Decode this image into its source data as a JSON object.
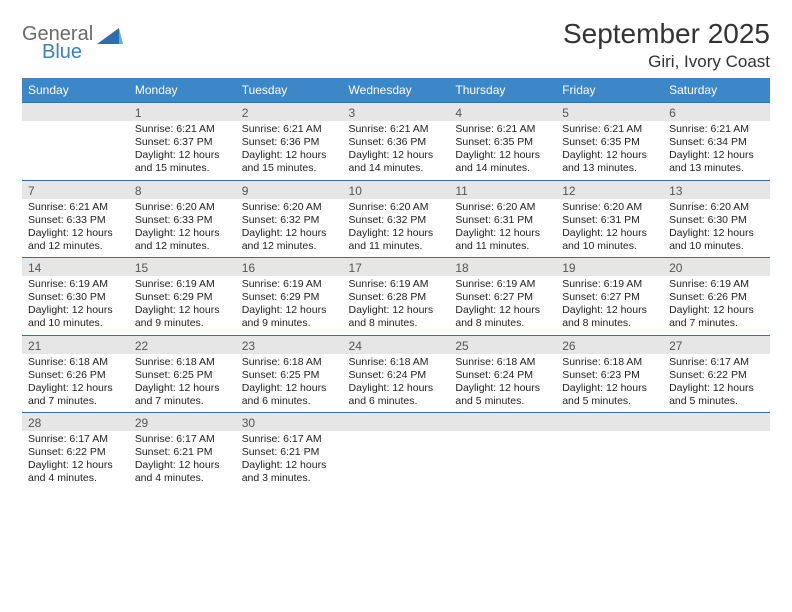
{
  "logo": {
    "word1": "General",
    "word2": "Blue",
    "shape_color": "#2f6db3",
    "word1_color": "#6b6b6b"
  },
  "title": "September 2025",
  "location": "Giri, Ivory Coast",
  "colors": {
    "header_bg": "#3b87c8",
    "header_text": "#ffffff",
    "daynum_bg": "#e6e6e6",
    "row_border": "#3b6fa0",
    "text": "#222222"
  },
  "dow": [
    "Sunday",
    "Monday",
    "Tuesday",
    "Wednesday",
    "Thursday",
    "Friday",
    "Saturday"
  ],
  "weeks": [
    [
      {
        "n": "",
        "sr": "",
        "ss": "",
        "dl": ""
      },
      {
        "n": "1",
        "sr": "Sunrise: 6:21 AM",
        "ss": "Sunset: 6:37 PM",
        "dl": "Daylight: 12 hours and 15 minutes."
      },
      {
        "n": "2",
        "sr": "Sunrise: 6:21 AM",
        "ss": "Sunset: 6:36 PM",
        "dl": "Daylight: 12 hours and 15 minutes."
      },
      {
        "n": "3",
        "sr": "Sunrise: 6:21 AM",
        "ss": "Sunset: 6:36 PM",
        "dl": "Daylight: 12 hours and 14 minutes."
      },
      {
        "n": "4",
        "sr": "Sunrise: 6:21 AM",
        "ss": "Sunset: 6:35 PM",
        "dl": "Daylight: 12 hours and 14 minutes."
      },
      {
        "n": "5",
        "sr": "Sunrise: 6:21 AM",
        "ss": "Sunset: 6:35 PM",
        "dl": "Daylight: 12 hours and 13 minutes."
      },
      {
        "n": "6",
        "sr": "Sunrise: 6:21 AM",
        "ss": "Sunset: 6:34 PM",
        "dl": "Daylight: 12 hours and 13 minutes."
      }
    ],
    [
      {
        "n": "7",
        "sr": "Sunrise: 6:21 AM",
        "ss": "Sunset: 6:33 PM",
        "dl": "Daylight: 12 hours and 12 minutes."
      },
      {
        "n": "8",
        "sr": "Sunrise: 6:20 AM",
        "ss": "Sunset: 6:33 PM",
        "dl": "Daylight: 12 hours and 12 minutes."
      },
      {
        "n": "9",
        "sr": "Sunrise: 6:20 AM",
        "ss": "Sunset: 6:32 PM",
        "dl": "Daylight: 12 hours and 12 minutes."
      },
      {
        "n": "10",
        "sr": "Sunrise: 6:20 AM",
        "ss": "Sunset: 6:32 PM",
        "dl": "Daylight: 12 hours and 11 minutes."
      },
      {
        "n": "11",
        "sr": "Sunrise: 6:20 AM",
        "ss": "Sunset: 6:31 PM",
        "dl": "Daylight: 12 hours and 11 minutes."
      },
      {
        "n": "12",
        "sr": "Sunrise: 6:20 AM",
        "ss": "Sunset: 6:31 PM",
        "dl": "Daylight: 12 hours and 10 minutes."
      },
      {
        "n": "13",
        "sr": "Sunrise: 6:20 AM",
        "ss": "Sunset: 6:30 PM",
        "dl": "Daylight: 12 hours and 10 minutes."
      }
    ],
    [
      {
        "n": "14",
        "sr": "Sunrise: 6:19 AM",
        "ss": "Sunset: 6:30 PM",
        "dl": "Daylight: 12 hours and 10 minutes."
      },
      {
        "n": "15",
        "sr": "Sunrise: 6:19 AM",
        "ss": "Sunset: 6:29 PM",
        "dl": "Daylight: 12 hours and 9 minutes."
      },
      {
        "n": "16",
        "sr": "Sunrise: 6:19 AM",
        "ss": "Sunset: 6:29 PM",
        "dl": "Daylight: 12 hours and 9 minutes."
      },
      {
        "n": "17",
        "sr": "Sunrise: 6:19 AM",
        "ss": "Sunset: 6:28 PM",
        "dl": "Daylight: 12 hours and 8 minutes."
      },
      {
        "n": "18",
        "sr": "Sunrise: 6:19 AM",
        "ss": "Sunset: 6:27 PM",
        "dl": "Daylight: 12 hours and 8 minutes."
      },
      {
        "n": "19",
        "sr": "Sunrise: 6:19 AM",
        "ss": "Sunset: 6:27 PM",
        "dl": "Daylight: 12 hours and 8 minutes."
      },
      {
        "n": "20",
        "sr": "Sunrise: 6:19 AM",
        "ss": "Sunset: 6:26 PM",
        "dl": "Daylight: 12 hours and 7 minutes."
      }
    ],
    [
      {
        "n": "21",
        "sr": "Sunrise: 6:18 AM",
        "ss": "Sunset: 6:26 PM",
        "dl": "Daylight: 12 hours and 7 minutes."
      },
      {
        "n": "22",
        "sr": "Sunrise: 6:18 AM",
        "ss": "Sunset: 6:25 PM",
        "dl": "Daylight: 12 hours and 7 minutes."
      },
      {
        "n": "23",
        "sr": "Sunrise: 6:18 AM",
        "ss": "Sunset: 6:25 PM",
        "dl": "Daylight: 12 hours and 6 minutes."
      },
      {
        "n": "24",
        "sr": "Sunrise: 6:18 AM",
        "ss": "Sunset: 6:24 PM",
        "dl": "Daylight: 12 hours and 6 minutes."
      },
      {
        "n": "25",
        "sr": "Sunrise: 6:18 AM",
        "ss": "Sunset: 6:24 PM",
        "dl": "Daylight: 12 hours and 5 minutes."
      },
      {
        "n": "26",
        "sr": "Sunrise: 6:18 AM",
        "ss": "Sunset: 6:23 PM",
        "dl": "Daylight: 12 hours and 5 minutes."
      },
      {
        "n": "27",
        "sr": "Sunrise: 6:17 AM",
        "ss": "Sunset: 6:22 PM",
        "dl": "Daylight: 12 hours and 5 minutes."
      }
    ],
    [
      {
        "n": "28",
        "sr": "Sunrise: 6:17 AM",
        "ss": "Sunset: 6:22 PM",
        "dl": "Daylight: 12 hours and 4 minutes."
      },
      {
        "n": "29",
        "sr": "Sunrise: 6:17 AM",
        "ss": "Sunset: 6:21 PM",
        "dl": "Daylight: 12 hours and 4 minutes."
      },
      {
        "n": "30",
        "sr": "Sunrise: 6:17 AM",
        "ss": "Sunset: 6:21 PM",
        "dl": "Daylight: 12 hours and 3 minutes."
      },
      {
        "n": "",
        "sr": "",
        "ss": "",
        "dl": ""
      },
      {
        "n": "",
        "sr": "",
        "ss": "",
        "dl": ""
      },
      {
        "n": "",
        "sr": "",
        "ss": "",
        "dl": ""
      },
      {
        "n": "",
        "sr": "",
        "ss": "",
        "dl": ""
      }
    ]
  ]
}
